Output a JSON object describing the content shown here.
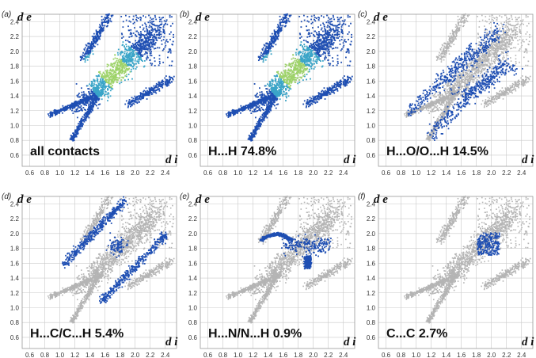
{
  "chart_data": [
    {
      "panel": "(a)",
      "type": "scatter",
      "label": "all contacts",
      "percent": "",
      "xlabel": "d i",
      "ylabel": "d e",
      "x_ticks": [
        "0.6",
        "0.8",
        "1.0",
        "1.2",
        "1.4",
        "1.6",
        "1.8",
        "2.0",
        "2.2",
        "2.4"
      ],
      "y_ticks": [
        "0.6",
        "0.8",
        "1.0",
        "1.2",
        "1.4",
        "1.6",
        "1.8",
        "2.0",
        "2.2",
        "2.4"
      ],
      "xlim": [
        0.5,
        2.55
      ],
      "ylim": [
        0.45,
        2.5
      ],
      "highlight": "all"
    },
    {
      "panel": "(b)",
      "type": "scatter",
      "label": "H...H",
      "percent": "74.8%",
      "xlabel": "d i",
      "ylabel": "d e",
      "x_ticks": [
        "0.6",
        "0.8",
        "1.0",
        "1.2",
        "1.4",
        "1.6",
        "1.8",
        "2.0",
        "2.2",
        "2.4"
      ],
      "y_ticks": [
        "0.6",
        "0.8",
        "1.0",
        "1.2",
        "1.4",
        "1.6",
        "1.8",
        "2.0",
        "2.2",
        "2.4"
      ],
      "xlim": [
        0.5,
        2.55
      ],
      "ylim": [
        0.45,
        2.5
      ],
      "highlight": "HH"
    },
    {
      "panel": "(c)",
      "type": "scatter",
      "label": "H...O/O...H",
      "percent": "14.5%",
      "xlabel": "d i",
      "ylabel": "d e",
      "x_ticks": [
        "0.6",
        "0.8",
        "1.0",
        "1.2",
        "1.4",
        "1.6",
        "1.8",
        "2.0",
        "2.2",
        "2.4"
      ],
      "y_ticks": [
        "0.6",
        "0.8",
        "1.0",
        "1.2",
        "1.4",
        "1.6",
        "1.8",
        "2.0",
        "2.2",
        "2.4"
      ],
      "xlim": [
        0.5,
        2.55
      ],
      "ylim": [
        0.45,
        2.5
      ],
      "highlight": "HO"
    },
    {
      "panel": "(d)",
      "type": "scatter",
      "label": "H...C/C...H",
      "percent": "5.4%",
      "xlabel": "d i",
      "ylabel": "d e",
      "x_ticks": [
        "0.6",
        "0.8",
        "1.0",
        "1.2",
        "1.4",
        "1.6",
        "1.8",
        "2.0",
        "2.2",
        "2.4"
      ],
      "y_ticks": [
        "0.6",
        "0.8",
        "1.0",
        "1.2",
        "1.4",
        "1.6",
        "1.8",
        "2.0",
        "2.2",
        "2.4"
      ],
      "xlim": [
        0.5,
        2.55
      ],
      "ylim": [
        0.45,
        2.5
      ],
      "highlight": "HC"
    },
    {
      "panel": "(e)",
      "type": "scatter",
      "label": "H...N/N...H",
      "percent": "0.9%",
      "xlabel": "d i",
      "ylabel": "d e",
      "x_ticks": [
        "0.6",
        "0.8",
        "1.0",
        "1.2",
        "1.4",
        "1.6",
        "1.8",
        "2.0",
        "2.2",
        "2.4"
      ],
      "y_ticks": [
        "0.6",
        "0.8",
        "1.0",
        "1.2",
        "1.4",
        "1.6",
        "1.8",
        "2.0",
        "2.2",
        "2.4"
      ],
      "xlim": [
        0.5,
        2.55
      ],
      "ylim": [
        0.45,
        2.5
      ],
      "highlight": "HN"
    },
    {
      "panel": "(f)",
      "type": "scatter",
      "label": "C...C",
      "percent": "2.7%",
      "xlabel": "d i",
      "ylabel": "d e",
      "x_ticks": [
        "0.6",
        "0.8",
        "1.0",
        "1.2",
        "1.4",
        "1.6",
        "1.8",
        "2.0",
        "2.2",
        "2.4"
      ],
      "y_ticks": [
        "0.6",
        "0.8",
        "1.0",
        "1.2",
        "1.4",
        "1.6",
        "1.8",
        "2.0",
        "2.2",
        "2.4"
      ],
      "xlim": [
        0.5,
        2.55
      ],
      "ylim": [
        0.45,
        2.5
      ],
      "highlight": "CC"
    }
  ],
  "colors": {
    "grey_points": "#b4b4b4",
    "blue_points": "#1f4fb3",
    "cyan_points": "#3aa5c8",
    "green_points": "#9ed36a",
    "grid": "#c9c9c9"
  }
}
